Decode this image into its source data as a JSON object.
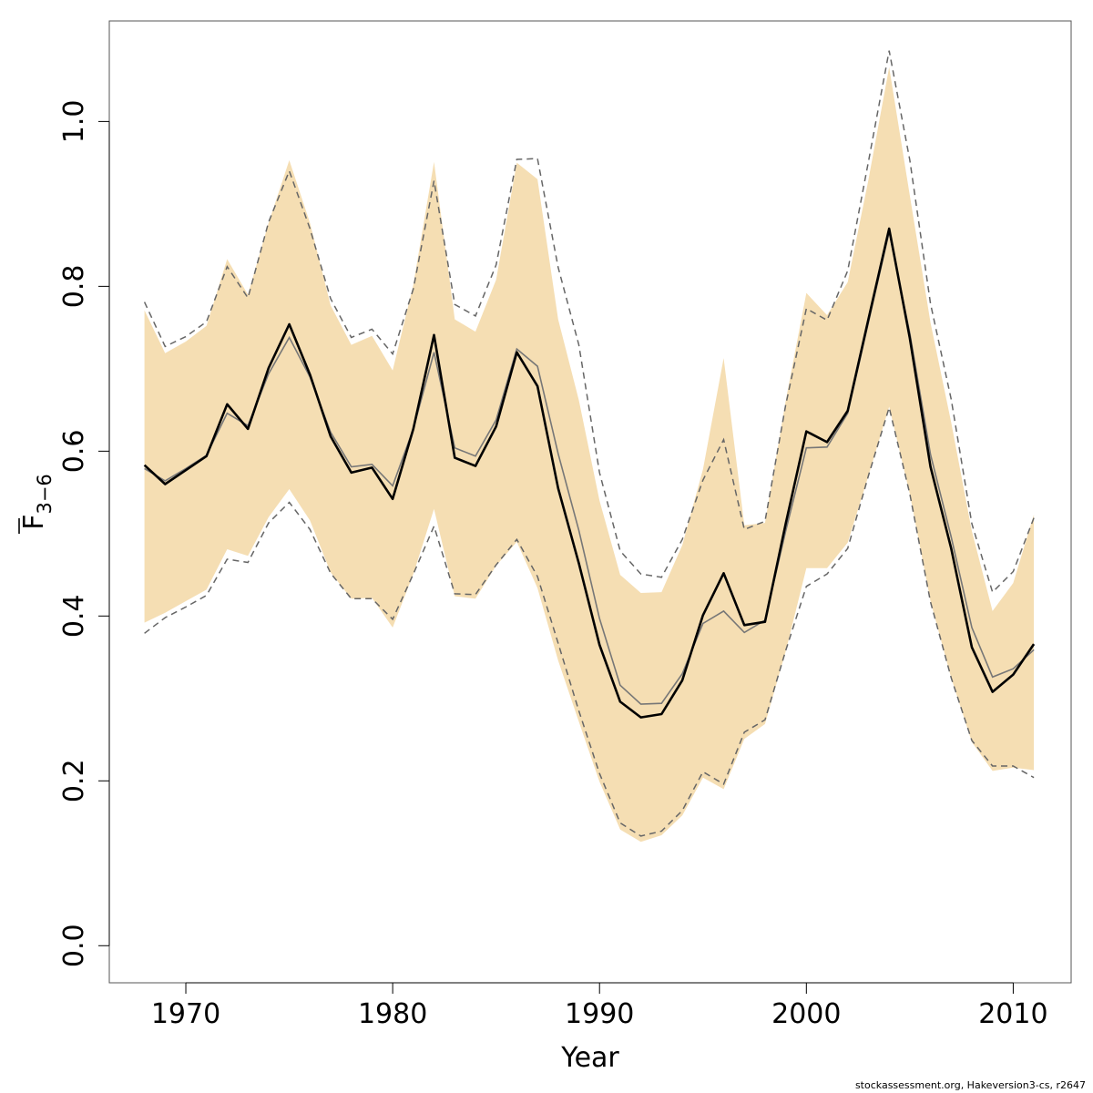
{
  "chart_data": {
    "type": "line",
    "xlabel": "Year",
    "ylabel": {
      "main": "F",
      "sub": "3−6",
      "overline": true
    },
    "x_ticks": [
      1970,
      1980,
      1990,
      2000,
      2010
    ],
    "y_ticks": [
      "0.0",
      "0.2",
      "0.4",
      "0.6",
      "0.8",
      "1.0"
    ],
    "xlim": [
      1966.3,
      2012.8
    ],
    "ylim": [
      -0.045,
      1.122
    ],
    "grid": false,
    "legend": "none",
    "colors": {
      "band": "#f5deb3",
      "point": "#000000",
      "median": "#777777",
      "interval": "#666666"
    },
    "years": [
      1968,
      1969,
      1970,
      1971,
      1972,
      1973,
      1974,
      1975,
      1976,
      1977,
      1978,
      1979,
      1980,
      1981,
      1982,
      1983,
      1984,
      1985,
      1986,
      1987,
      1988,
      1989,
      1990,
      1991,
      1992,
      1993,
      1994,
      1995,
      1996,
      1997,
      1998,
      1999,
      2000,
      2001,
      2002,
      2003,
      2004,
      2005,
      2006,
      2007,
      2008,
      2009,
      2010,
      2011
    ],
    "band_upper": [
      0.771,
      0.719,
      0.733,
      0.752,
      0.833,
      0.79,
      0.877,
      0.953,
      0.877,
      0.777,
      0.729,
      0.74,
      0.698,
      0.802,
      0.951,
      0.76,
      0.745,
      0.808,
      0.95,
      0.93,
      0.76,
      0.662,
      0.54,
      0.45,
      0.428,
      0.429,
      0.486,
      0.578,
      0.713,
      0.51,
      0.513,
      0.661,
      0.792,
      0.765,
      0.805,
      0.929,
      1.066,
      0.91,
      0.756,
      0.635,
      0.503,
      0.406,
      0.44,
      0.523
    ],
    "band_lower": [
      0.392,
      0.404,
      0.418,
      0.432,
      0.481,
      0.473,
      0.52,
      0.554,
      0.516,
      0.453,
      0.421,
      0.422,
      0.386,
      0.451,
      0.53,
      0.424,
      0.421,
      0.461,
      0.49,
      0.434,
      0.346,
      0.272,
      0.199,
      0.141,
      0.126,
      0.134,
      0.158,
      0.204,
      0.19,
      0.251,
      0.269,
      0.357,
      0.458,
      0.458,
      0.489,
      0.57,
      0.654,
      0.548,
      0.418,
      0.325,
      0.247,
      0.212,
      0.216,
      0.213
    ],
    "upper_dashed": [
      0.781,
      0.727,
      0.739,
      0.757,
      0.824,
      0.786,
      0.878,
      0.94,
      0.87,
      0.785,
      0.738,
      0.748,
      0.718,
      0.797,
      0.928,
      0.778,
      0.764,
      0.826,
      0.954,
      0.955,
      0.823,
      0.729,
      0.574,
      0.479,
      0.451,
      0.447,
      0.493,
      0.565,
      0.614,
      0.505,
      0.515,
      0.656,
      0.773,
      0.759,
      0.819,
      0.951,
      1.086,
      0.953,
      0.779,
      0.663,
      0.512,
      0.429,
      0.454,
      0.519
    ],
    "lower_dashed": [
      0.379,
      0.398,
      0.411,
      0.425,
      0.469,
      0.465,
      0.513,
      0.538,
      0.505,
      0.452,
      0.421,
      0.421,
      0.396,
      0.451,
      0.509,
      0.427,
      0.426,
      0.462,
      0.493,
      0.448,
      0.367,
      0.285,
      0.209,
      0.149,
      0.133,
      0.139,
      0.164,
      0.211,
      0.196,
      0.259,
      0.274,
      0.358,
      0.436,
      0.451,
      0.482,
      0.57,
      0.653,
      0.548,
      0.417,
      0.325,
      0.249,
      0.218,
      0.218,
      0.204
    ],
    "point_estimate": [
      0.583,
      0.56,
      0.577,
      0.594,
      0.657,
      0.627,
      0.701,
      0.754,
      0.693,
      0.618,
      0.574,
      0.58,
      0.542,
      0.627,
      0.741,
      0.592,
      0.582,
      0.63,
      0.72,
      0.679,
      0.555,
      0.464,
      0.365,
      0.296,
      0.277,
      0.281,
      0.322,
      0.401,
      0.452,
      0.389,
      0.393,
      0.512,
      0.624,
      0.611,
      0.649,
      0.76,
      0.87,
      0.737,
      0.581,
      0.482,
      0.362,
      0.308,
      0.329,
      0.366
    ],
    "median": [
      0.579,
      0.564,
      0.579,
      0.595,
      0.646,
      0.631,
      0.694,
      0.738,
      0.69,
      0.623,
      0.581,
      0.584,
      0.558,
      0.627,
      0.72,
      0.604,
      0.594,
      0.638,
      0.724,
      0.703,
      0.597,
      0.504,
      0.397,
      0.316,
      0.293,
      0.294,
      0.33,
      0.391,
      0.406,
      0.38,
      0.395,
      0.503,
      0.604,
      0.605,
      0.646,
      0.756,
      0.866,
      0.743,
      0.596,
      0.496,
      0.386,
      0.326,
      0.336,
      0.359
    ]
  },
  "footer": "stockassessment.org, Hakeversion3-cs, r2647"
}
